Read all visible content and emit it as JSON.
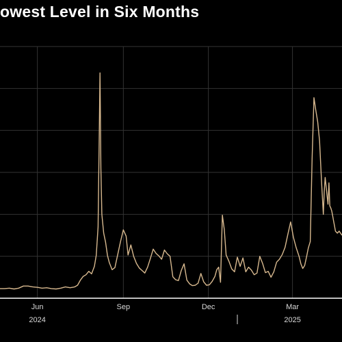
{
  "title": "owest Level in Six Months",
  "colors": {
    "background": "#000000",
    "series": "#d8b98f",
    "grid": "#333333",
    "axis": "#ffffff",
    "text": "#ffffff"
  },
  "chart_data": {
    "type": "line",
    "title": "owest Level in Six Months",
    "xlabel": "",
    "ylabel": "",
    "grid": true,
    "x_ticks": [
      {
        "label": "Jun",
        "year": "2024",
        "date": "2024-06-01"
      },
      {
        "label": "Sep",
        "year": "",
        "date": "2024-09-01"
      },
      {
        "label": "Dec",
        "year": "",
        "date": "2024-12-01"
      },
      {
        "label": "Mar",
        "year": "2025",
        "date": "2025-03-01"
      }
    ],
    "xlim": [
      "2024-04-22",
      "2025-04-23"
    ],
    "ylim": [
      0,
      60
    ],
    "series": [
      {
        "x": [
          "2024-04-22",
          "2024-04-27",
          "2024-05-02",
          "2024-05-07",
          "2024-05-12",
          "2024-05-17",
          "2024-05-22",
          "2024-05-27",
          "2024-06-01",
          "2024-06-06",
          "2024-06-11",
          "2024-06-16",
          "2024-06-21",
          "2024-06-26",
          "2024-07-01",
          "2024-07-06",
          "2024-07-11",
          "2024-07-14",
          "2024-07-17",
          "2024-07-20",
          "2024-07-23",
          "2024-07-26",
          "2024-07-29",
          "2024-08-01",
          "2024-08-03",
          "2024-08-05",
          "2024-08-06",
          "2024-08-07",
          "2024-08-08",
          "2024-08-09",
          "2024-08-11",
          "2024-08-13",
          "2024-08-15",
          "2024-08-17",
          "2024-08-20",
          "2024-08-23",
          "2024-08-26",
          "2024-08-29",
          "2024-09-01",
          "2024-09-04",
          "2024-09-06",
          "2024-09-09",
          "2024-09-12",
          "2024-09-15",
          "2024-09-18",
          "2024-09-21",
          "2024-09-24",
          "2024-09-27",
          "2024-09-30",
          "2024-10-03",
          "2024-10-06",
          "2024-10-09",
          "2024-10-12",
          "2024-10-15",
          "2024-10-18",
          "2024-10-21",
          "2024-10-24",
          "2024-10-27",
          "2024-10-30",
          "2024-11-02",
          "2024-11-05",
          "2024-11-08",
          "2024-11-11",
          "2024-11-14",
          "2024-11-17",
          "2024-11-20",
          "2024-11-23",
          "2024-11-26",
          "2024-11-29",
          "2024-12-02",
          "2024-12-05",
          "2024-12-08",
          "2024-12-10",
          "2024-12-12",
          "2024-12-14",
          "2024-12-16",
          "2024-12-18",
          "2024-12-20",
          "2024-12-23",
          "2024-12-26",
          "2024-12-29",
          "2025-01-01",
          "2025-01-04",
          "2025-01-07",
          "2025-01-10",
          "2025-01-13",
          "2025-01-16",
          "2025-01-19",
          "2025-01-22",
          "2025-01-25",
          "2025-01-28",
          "2025-01-31",
          "2025-02-03",
          "2025-02-06",
          "2025-02-09",
          "2025-02-12",
          "2025-02-15",
          "2025-02-18",
          "2025-02-21",
          "2025-02-24",
          "2025-02-27",
          "2025-03-02",
          "2025-03-05",
          "2025-03-08",
          "2025-03-10",
          "2025-03-12",
          "2025-03-14",
          "2025-03-16",
          "2025-03-18",
          "2025-03-20",
          "2025-03-22",
          "2025-03-24",
          "2025-03-26",
          "2025-03-28",
          "2025-03-30",
          "2025-04-01",
          "2025-04-03",
          "2025-04-04",
          "2025-04-05",
          "2025-04-07",
          "2025-04-08",
          "2025-04-09",
          "2025-04-10",
          "2025-04-11",
          "2025-04-12",
          "2025-04-13",
          "2025-04-14",
          "2025-04-15",
          "2025-04-16",
          "2025-04-18",
          "2025-04-20",
          "2025-04-23"
        ],
        "values": [
          2.3,
          2.3,
          2.4,
          2.2,
          2.4,
          2.9,
          2.9,
          2.7,
          2.6,
          2.4,
          2.5,
          2.3,
          2.2,
          2.4,
          2.7,
          2.5,
          2.7,
          3.1,
          4.3,
          5.2,
          5.6,
          6.4,
          5.8,
          7.6,
          10.2,
          17.0,
          35.0,
          53.7,
          31.0,
          20.0,
          15.5,
          13.3,
          10.2,
          8.5,
          6.8,
          7.3,
          10.4,
          13.5,
          16.3,
          14.8,
          10.3,
          12.7,
          10.0,
          8.3,
          7.2,
          6.6,
          6.0,
          7.4,
          9.5,
          11.7,
          10.7,
          10.1,
          9.3,
          11.5,
          10.6,
          10.0,
          5.1,
          4.4,
          4.2,
          6.6,
          8.2,
          4.3,
          3.4,
          3.0,
          3.1,
          3.6,
          5.9,
          3.9,
          3.1,
          3.2,
          4.0,
          5.2,
          6.8,
          7.4,
          3.8,
          19.8,
          16.4,
          10.3,
          8.8,
          7.0,
          6.3,
          9.8,
          7.6,
          9.6,
          6.3,
          7.4,
          6.7,
          5.6,
          6.0,
          10.0,
          8.3,
          6.1,
          6.4,
          5.0,
          6.3,
          8.6,
          9.3,
          10.4,
          12.1,
          15.2,
          18.2,
          14.5,
          12.0,
          10.0,
          8.2,
          7.1,
          7.8,
          9.8,
          12.0,
          13.5,
          33.3,
          47.8,
          44.8,
          42.0,
          37.5,
          28.4,
          20.0,
          25.3,
          28.8,
          24.6,
          22.4,
          27.5,
          22.0,
          21.5,
          20.8,
          19.7,
          18.4,
          17.2,
          16.0,
          15.5,
          16.0,
          15.0
        ]
      }
    ]
  }
}
